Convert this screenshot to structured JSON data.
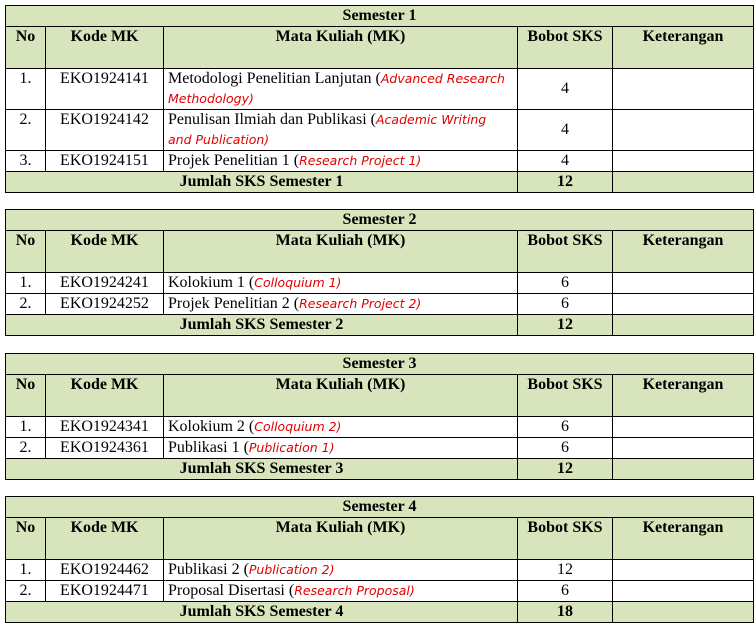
{
  "headers": {
    "no": "No",
    "kode": "Kode MK",
    "mk": "Mata Kuliah (MK)",
    "bobot": "Bobot SKS",
    "ket": "Keterangan"
  },
  "colors": {
    "header_bg": "#d8e4bc",
    "english_text": "#e00000"
  },
  "semesters": [
    {
      "title": "Semester 1",
      "total_label": "Jumlah SKS Semester 1",
      "total": "12",
      "rows": [
        {
          "no": "1.",
          "kode": "EKO1924141",
          "mk": "Metodologi Penelitian Lanjutan (",
          "en": "Advanced Research Methodology)",
          "sks": "4",
          "ket": ""
        },
        {
          "no": "2.",
          "kode": "EKO1924142",
          "mk": "Penulisan Ilmiah dan Publikasi (",
          "en": "Academic Writing and Publication)",
          "sks": "4",
          "ket": ""
        },
        {
          "no": "3.",
          "kode": "EKO1924151",
          "mk": "Projek Penelitian 1 (",
          "en": "Research Project 1)",
          "sks": "4",
          "ket": ""
        }
      ]
    },
    {
      "title": "Semester 2",
      "total_label": "Jumlah SKS Semester 2",
      "total": "12",
      "rows": [
        {
          "no": "1.",
          "kode": "EKO1924241",
          "mk": "Kolokium 1 (",
          "en": "Colloquium 1)",
          "sks": "6",
          "ket": ""
        },
        {
          "no": "2.",
          "kode": "EKO1924252",
          "mk": "Projek Penelitian 2 (",
          "en": "Research Project 2)",
          "sks": "6",
          "ket": ""
        }
      ]
    },
    {
      "title": "Semester 3",
      "total_label": "Jumlah SKS Semester 3",
      "total": "12",
      "rows": [
        {
          "no": "1.",
          "kode": "EKO1924341",
          "mk": "Kolokium 2 (",
          "en": "Colloquium 2)",
          "sks": "6",
          "ket": ""
        },
        {
          "no": "2.",
          "kode": "EKO1924361",
          "mk": "Publikasi 1 (",
          "en": "Publication 1)",
          "sks": "6",
          "ket": ""
        }
      ]
    },
    {
      "title": "Semester 4",
      "total_label": "Jumlah SKS Semester 4",
      "total": "18",
      "rows": [
        {
          "no": "1.",
          "kode": "EKO1924462",
          "mk": "Publikasi 2 (",
          "en": "Publication 2)",
          "sks": "12",
          "ket": ""
        },
        {
          "no": "2.",
          "kode": "EKO1924471",
          "mk": "Proposal Disertasi (",
          "en": "Research Proposal)",
          "sks": "6",
          "ket": ""
        }
      ]
    }
  ]
}
